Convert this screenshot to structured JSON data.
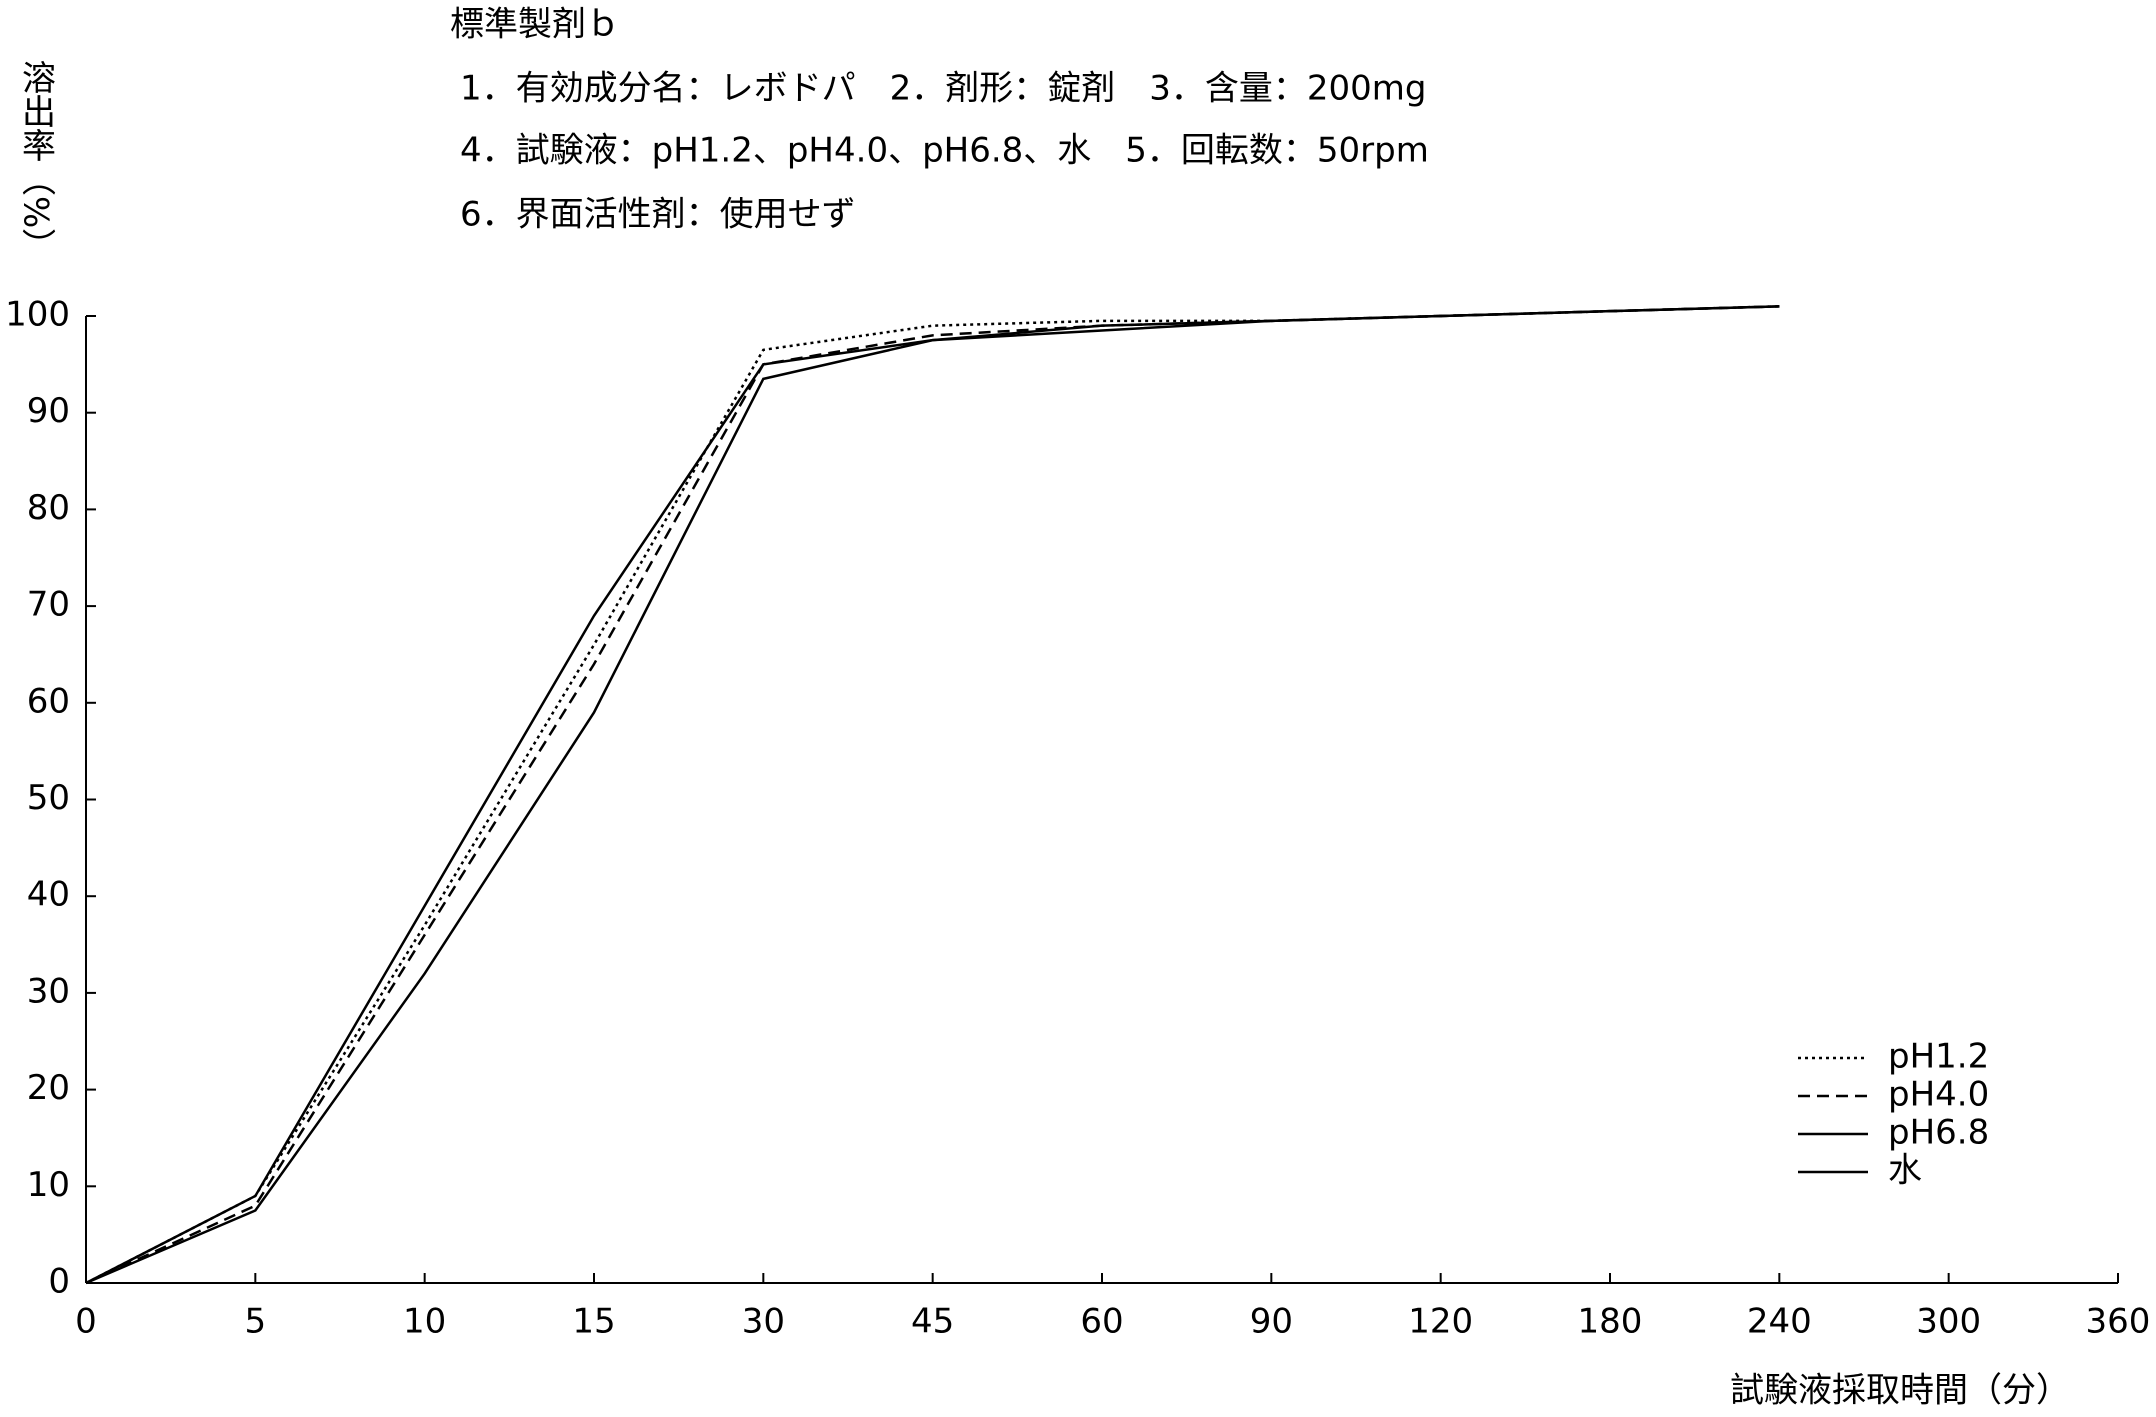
{
  "chart_data": {
    "type": "line",
    "title": "標準製剤ｂ",
    "annotations": [
      "1．有効成分名：レボドパ　2．剤形：錠剤　3．含量：200mg",
      "4．試験液：pH1.2、pH4.0、pH6.8、水　5．回転数：50rpm",
      "6．界面活性剤：使用せず"
    ],
    "y_label": "溶出率（%）",
    "x_label": "試験液採取時間（分）",
    "categories": [
      "0",
      "5",
      "10",
      "15",
      "30",
      "45",
      "60",
      "90",
      "120",
      "180",
      "240",
      "300",
      "360"
    ],
    "series": [
      {
        "name": "pH1.2",
        "color": "#000000",
        "line_style": "dotted",
        "values": [
          0,
          9,
          37,
          66,
          96.5,
          99,
          99.5,
          99.5,
          100,
          100.5,
          101,
          null,
          null
        ]
      },
      {
        "name": "pH4.0",
        "color": "#000000",
        "line_style": "dashed",
        "values": [
          0,
          8,
          36,
          64,
          95,
          98,
          99,
          99.5,
          100,
          100.5,
          101,
          null,
          null
        ]
      },
      {
        "name": "pH6.8",
        "color": "#000000",
        "line_style": "solid",
        "values": [
          0,
          9,
          39,
          69,
          95,
          97.5,
          99,
          99.5,
          100,
          100.5,
          101,
          null,
          null
        ]
      },
      {
        "name": "水",
        "color": "#000000",
        "line_style": "solid",
        "values": [
          0,
          7.5,
          32,
          59,
          93.5,
          97.5,
          98.5,
          99.5,
          100,
          100.5,
          101,
          null,
          null
        ]
      }
    ],
    "ylim": [
      0,
      100
    ],
    "yticks": [
      0,
      10,
      20,
      30,
      40,
      50,
      60,
      70,
      80,
      90,
      100
    ],
    "grid": false,
    "legend": "lower right"
  }
}
